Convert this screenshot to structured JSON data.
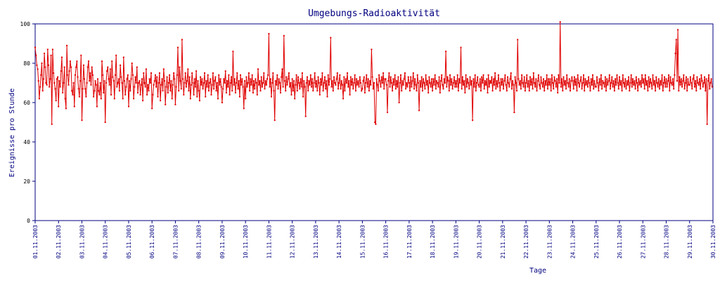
{
  "chart_data": {
    "type": "line",
    "title": "Umgebungs-Radioaktivität",
    "xlabel": "Tage",
    "ylabel": "Ereignisse pro Stunde",
    "ylim": [
      0,
      100
    ],
    "yticks": [
      0,
      20,
      40,
      60,
      80,
      100
    ],
    "xlim": [
      "01.11.2003",
      "30.11.2003"
    ],
    "xticks": [
      "01.11.2003",
      "02.11.2003",
      "03.11.2003",
      "04.11.2003",
      "05.11.2003",
      "06.11.2003",
      "07.11.2003",
      "08.11.2003",
      "09.11.2003",
      "10.11.2003",
      "11.11.2003",
      "12.11.2003",
      "13.11.2003",
      "14.11.2003",
      "15.11.2003",
      "16.11.2003",
      "17.11.2003",
      "18.11.2003",
      "19.11.2003",
      "20.11.2003",
      "21.11.2003",
      "22.11.2003",
      "23.11.2003",
      "24.11.2003",
      "25.11.2003",
      "26.11.2003",
      "27.11.2003",
      "28.11.2003",
      "29.11.2003",
      "30.11.2003"
    ],
    "grid": false,
    "colors": {
      "line": "#e00000",
      "axes": "#000080",
      "text": "#000080"
    },
    "series": [
      {
        "daily_points": [
          [
            88,
            84,
            79,
            77,
            71,
            62,
            68,
            74,
            80,
            66,
            72,
            85,
            78,
            70,
            69,
            87,
            79,
            68,
            72,
            84,
            49,
            87,
            75,
            70,
            67,
            61,
            72,
            73
          ],
          [
            58,
            71,
            68,
            76,
            83,
            65,
            70,
            78,
            62,
            57,
            89,
            74,
            69,
            76,
            81,
            78,
            66,
            64,
            70,
            58,
            74,
            78,
            81,
            73,
            67,
            63,
            71,
            84
          ],
          [
            51,
            67,
            79,
            72,
            67,
            63,
            70,
            78,
            81,
            71,
            75,
            69,
            78,
            74,
            63,
            66,
            71,
            69,
            58,
            72,
            66,
            64,
            70,
            62,
            81,
            74,
            65,
            71
          ],
          [
            50,
            70,
            76,
            78,
            72,
            69,
            77,
            64,
            81,
            73,
            71,
            62,
            74,
            84,
            68,
            70,
            72,
            66,
            79,
            73,
            70,
            62,
            83,
            71,
            64,
            68,
            72,
            74
          ],
          [
            58,
            71,
            66,
            72,
            80,
            74,
            62,
            68,
            73,
            70,
            78,
            65,
            70,
            71,
            64,
            69,
            72,
            61,
            75,
            70,
            68,
            77,
            64,
            69,
            66,
            72,
            70,
            75
          ],
          [
            57,
            64,
            69,
            71,
            74,
            68,
            73,
            63,
            70,
            75,
            61,
            69,
            72,
            66,
            77,
            71,
            59,
            68,
            73,
            65,
            70,
            74,
            66,
            71,
            62,
            69,
            75,
            72
          ],
          [
            59,
            68,
            74,
            88,
            66,
            78,
            71,
            67,
            92,
            72,
            64,
            70,
            75,
            68,
            71,
            77,
            66,
            73,
            62,
            69,
            75,
            70,
            64,
            72,
            68,
            76,
            63,
            71
          ],
          [
            66,
            61,
            73,
            69,
            72,
            67,
            70,
            75,
            63,
            71,
            68,
            74,
            66,
            70,
            72,
            64,
            69,
            75,
            67,
            71,
            73,
            66,
            70,
            62,
            74,
            69,
            72,
            68
          ],
          [
            60,
            67,
            72,
            70,
            76,
            65,
            71,
            68,
            74,
            64,
            70,
            73,
            66,
            86,
            69,
            72,
            65,
            70,
            75,
            67,
            71,
            63,
            74,
            69,
            72,
            68,
            57,
            71
          ],
          [
            62,
            73,
            68,
            70,
            75,
            66,
            72,
            69,
            74,
            65,
            71,
            67,
            72,
            70,
            64,
            77,
            69,
            71,
            66,
            73,
            68,
            70,
            75,
            67,
            71,
            69,
            72,
            74
          ],
          [
            95,
            68,
            72,
            63,
            70,
            75,
            66,
            51,
            71,
            69,
            74,
            67,
            72,
            70,
            65,
            73,
            77,
            68,
            94,
            71,
            66,
            73,
            69,
            72,
            75,
            68,
            70,
            64
          ],
          [
            72,
            66,
            71,
            62,
            69,
            74,
            66,
            73,
            70,
            67,
            72,
            68,
            75,
            63,
            71,
            68,
            53,
            70,
            73,
            66,
            71,
            69,
            74,
            68,
            72,
            66,
            70,
            75
          ],
          [
            68,
            71,
            66,
            73,
            70,
            64,
            72,
            69,
            75,
            66,
            70,
            73,
            67,
            71,
            63,
            74,
            69,
            72,
            93,
            68,
            71,
            66,
            73,
            70,
            69,
            72,
            75,
            67
          ],
          [
            70,
            74,
            67,
            71,
            69,
            62,
            73,
            66,
            72,
            70,
            75,
            68,
            71,
            64,
            73,
            69,
            72,
            67,
            70,
            74,
            66,
            72,
            69,
            71,
            68,
            73,
            70,
            66
          ],
          [
            67,
            71,
            73,
            65,
            70,
            74,
            68,
            72,
            66,
            71,
            69,
            87,
            73,
            67,
            70,
            50,
            49,
            72,
            69,
            66,
            74,
            71,
            68,
            73,
            70,
            75,
            67,
            72
          ],
          [
            72,
            69,
            55,
            71,
            75,
            68,
            73,
            70,
            66,
            72,
            69,
            74,
            67,
            71,
            68,
            73,
            60,
            70,
            74,
            66,
            71,
            69,
            72,
            75,
            67,
            70,
            68,
            73
          ],
          [
            70,
            66,
            73,
            68,
            71,
            75,
            67,
            72,
            69,
            66,
            74,
            70,
            56,
            71,
            68,
            73,
            66,
            72,
            70,
            67,
            74,
            69,
            71,
            65,
            73,
            70,
            68,
            72
          ],
          [
            66,
            72,
            69,
            74,
            67,
            71,
            70,
            68,
            73,
            65,
            71,
            74,
            69,
            67,
            72,
            70,
            86,
            68,
            73,
            71,
            66,
            74,
            69,
            72,
            67,
            70,
            73,
            68
          ],
          [
            71,
            68,
            74,
            66,
            72,
            70,
            88,
            67,
            73,
            69,
            71,
            65,
            74,
            68,
            72,
            70,
            67,
            73,
            69,
            71,
            51,
            72,
            68,
            74,
            66,
            70,
            73,
            69
          ],
          [
            68,
            72,
            66,
            73,
            70,
            74,
            67,
            71,
            69,
            72,
            65,
            74,
            68,
            71,
            70,
            73,
            66,
            72,
            69,
            75,
            67,
            71,
            68,
            74,
            70,
            66,
            72,
            69
          ],
          [
            72,
            67,
            71,
            74,
            69,
            66,
            73,
            70,
            68,
            72,
            75,
            67,
            71,
            69,
            55,
            73,
            70,
            66,
            92,
            72,
            69,
            71,
            67,
            74,
            70,
            68,
            73,
            66
          ],
          [
            70,
            74,
            68,
            71,
            66,
            73,
            69,
            72,
            67,
            75,
            70,
            68,
            72,
            66,
            71,
            74,
            69,
            67,
            73,
            70,
            68,
            72,
            66,
            71,
            69,
            74,
            67,
            72
          ],
          [
            69,
            72,
            66,
            74,
            70,
            67,
            73,
            71,
            68,
            72,
            65,
            74,
            70,
            101,
            68,
            72,
            66,
            73,
            69,
            71,
            67,
            74,
            70,
            68,
            72,
            66,
            71,
            73
          ],
          [
            71,
            67,
            73,
            69,
            72,
            66,
            74,
            70,
            68,
            71,
            73,
            67,
            70,
            74,
            66,
            72,
            69,
            71,
            68,
            73,
            70,
            66,
            72,
            69,
            74,
            67,
            71,
            68
          ],
          [
            68,
            73,
            70,
            66,
            72,
            69,
            74,
            67,
            71,
            70,
            68,
            73,
            66,
            72,
            69,
            71,
            74,
            67,
            70,
            73,
            68,
            71,
            66,
            72,
            69,
            74,
            70,
            67
          ],
          [
            73,
            69,
            71,
            66,
            74,
            70,
            68,
            72,
            67,
            71,
            69,
            73,
            66,
            70,
            74,
            68,
            72,
            69,
            71,
            67,
            73,
            70,
            66,
            72,
            69,
            71,
            68,
            74
          ],
          [
            70,
            72,
            67,
            74,
            69,
            71,
            66,
            73,
            68,
            72,
            70,
            67,
            74,
            69,
            71,
            66,
            73,
            70,
            68,
            72,
            67,
            71,
            69,
            74,
            66,
            70,
            73,
            68
          ],
          [
            72,
            68,
            71,
            74,
            66,
            73,
            70,
            69,
            72,
            67,
            74,
            85,
            92,
            71,
            97,
            66,
            73,
            69,
            72,
            68,
            71,
            74,
            67,
            70,
            73,
            66,
            72,
            69
          ],
          [
            69,
            73,
            70,
            67,
            72,
            74,
            68,
            71,
            66,
            73,
            70,
            69,
            72,
            67,
            74,
            71,
            68,
            70,
            73,
            66,
            72,
            49,
            71,
            74,
            67,
            70,
            72,
            68
          ],
          [
            71,
            67,
            74,
            70,
            68,
            72,
            66,
            73,
            69,
            71,
            70,
            74,
            67,
            72,
            68,
            71,
            73,
            66,
            70,
            74,
            69,
            72,
            67,
            71,
            68,
            73,
            70,
            66
          ]
        ]
      }
    ]
  }
}
